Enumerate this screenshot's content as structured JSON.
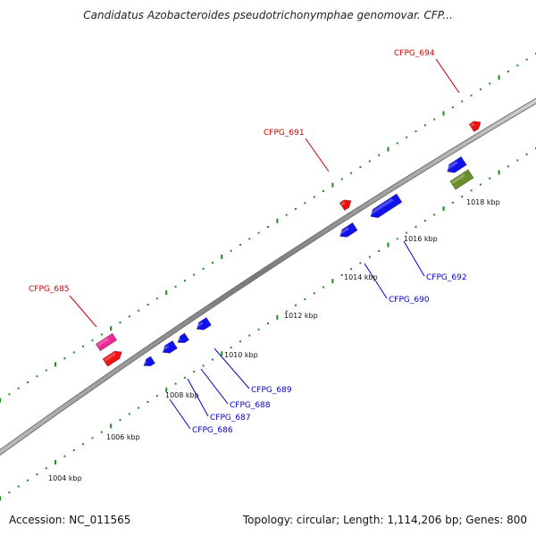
{
  "title": "Candidatus Azobacteroides pseudotrichonymphae genomovar. CFP...",
  "footer": {
    "accession": "Accession: NC_011565",
    "summary": "Topology: circular; Length: 1,114,206 bp; Genes: 800"
  },
  "colors": {
    "backbone": "#8a8a8a",
    "tick": "#1f8a1f",
    "forward_gene": "#ee1111",
    "reverse_gene": "#1111ee",
    "magenta_gene": "#ee2a9a",
    "olive_gene": "#6a8f2a",
    "label_red": "#cc0000",
    "label_blue": "#0000cc"
  },
  "scale_labels": [
    {
      "text": "1004 kbp"
    },
    {
      "text": "1006 kbp"
    },
    {
      "text": "1008 kbp"
    },
    {
      "text": "1010 kbp"
    },
    {
      "text": "1012 kbp"
    },
    {
      "text": "1014 kbp"
    },
    {
      "text": "1016 kbp"
    },
    {
      "text": "1018 kbp"
    }
  ],
  "gene_labels": [
    {
      "text": "CFPG_685",
      "strand": "forward"
    },
    {
      "text": "CFPG_691",
      "strand": "forward"
    },
    {
      "text": "CFPG_694",
      "strand": "forward"
    },
    {
      "text": "CFPG_686",
      "strand": "reverse"
    },
    {
      "text": "CFPG_687",
      "strand": "reverse"
    },
    {
      "text": "CFPG_688",
      "strand": "reverse"
    },
    {
      "text": "CFPG_689",
      "strand": "reverse"
    },
    {
      "text": "CFPG_690",
      "strand": "reverse"
    },
    {
      "text": "CFPG_692",
      "strand": "reverse"
    }
  ]
}
